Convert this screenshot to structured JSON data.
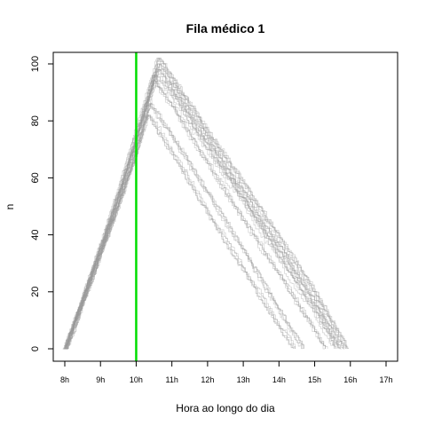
{
  "chart_data": {
    "type": "line",
    "title": "Fila médico 1",
    "xlabel": "Hora ao longo do dia",
    "ylabel": "n",
    "xlim": [
      8,
      17
    ],
    "ylim": [
      0,
      100
    ],
    "x_ticks": [
      8,
      9,
      10,
      11,
      12,
      13,
      14,
      15,
      16,
      17
    ],
    "x_tick_labels": [
      "8h",
      "9h",
      "10h",
      "11h",
      "12h",
      "13h",
      "14h",
      "15h",
      "16h",
      "17h"
    ],
    "y_ticks": [
      0,
      20,
      40,
      60,
      80,
      100
    ],
    "y_tick_labels": [
      "0",
      "20",
      "40",
      "60",
      "80",
      "100"
    ],
    "vertical_line": {
      "x": 10,
      "color": "#00dd00"
    },
    "series_color": "#999999",
    "n_series_approx": 30,
    "series_shape": "Each simulated series rises roughly linearly from about 0 at 8h to a peak of about 82–102 near 10.4h–10.7h, then declines roughly linearly to 0 between about 14.4h and 15.9h.",
    "series": [
      {
        "values": [
          [
            8.0,
            0
          ],
          [
            8.5,
            17
          ],
          [
            9.0,
            35
          ],
          [
            9.5,
            52
          ],
          [
            10.0,
            72
          ],
          [
            10.5,
            96
          ],
          [
            11.0,
            89
          ],
          [
            12.0,
            70
          ],
          [
            13.0,
            52
          ],
          [
            14.0,
            32
          ],
          [
            15.0,
            13
          ],
          [
            15.6,
            0
          ]
        ]
      },
      {
        "values": [
          [
            8.0,
            0
          ],
          [
            8.5,
            18
          ],
          [
            9.0,
            36
          ],
          [
            9.5,
            55
          ],
          [
            10.0,
            75
          ],
          [
            10.6,
            100
          ],
          [
            11.0,
            93
          ],
          [
            12.0,
            74
          ],
          [
            13.0,
            55
          ],
          [
            14.0,
            36
          ],
          [
            15.0,
            17
          ],
          [
            15.8,
            0
          ]
        ]
      },
      {
        "values": [
          [
            8.0,
            0
          ],
          [
            8.5,
            16
          ],
          [
            9.0,
            33
          ],
          [
            9.5,
            50
          ],
          [
            10.0,
            68
          ],
          [
            10.4,
            86
          ],
          [
            11.0,
            75
          ],
          [
            12.0,
            55
          ],
          [
            13.0,
            35
          ],
          [
            14.0,
            14
          ],
          [
            14.7,
            0
          ]
        ]
      },
      {
        "values": [
          [
            8.0,
            0
          ],
          [
            8.5,
            17
          ],
          [
            9.0,
            34
          ],
          [
            9.5,
            51
          ],
          [
            10.0,
            70
          ],
          [
            10.3,
            82
          ],
          [
            11.0,
            68
          ],
          [
            12.0,
            47
          ],
          [
            13.0,
            27
          ],
          [
            14.0,
            7
          ],
          [
            14.4,
            0
          ]
        ]
      },
      {
        "values": [
          [
            8.0,
            0
          ],
          [
            8.5,
            18
          ],
          [
            9.0,
            35
          ],
          [
            9.5,
            53
          ],
          [
            10.0,
            73
          ],
          [
            10.5,
            94
          ],
          [
            11.0,
            85
          ],
          [
            12.0,
            65
          ],
          [
            13.0,
            45
          ],
          [
            14.0,
            26
          ],
          [
            15.0,
            6
          ],
          [
            15.3,
            0
          ]
        ]
      },
      {
        "values": [
          [
            8.0,
            0
          ],
          [
            8.5,
            17
          ],
          [
            9.0,
            35
          ],
          [
            9.5,
            54
          ],
          [
            10.0,
            74
          ],
          [
            10.6,
            98
          ],
          [
            11.0,
            91
          ],
          [
            12.0,
            72
          ],
          [
            13.0,
            53
          ],
          [
            14.0,
            34
          ],
          [
            15.0,
            15
          ],
          [
            15.7,
            0
          ]
        ]
      },
      {
        "values": [
          [
            8.0,
            0
          ],
          [
            8.5,
            18
          ],
          [
            9.0,
            37
          ],
          [
            9.5,
            56
          ],
          [
            10.0,
            77
          ],
          [
            10.6,
            102
          ],
          [
            11.0,
            95
          ],
          [
            12.0,
            76
          ],
          [
            13.0,
            58
          ],
          [
            14.0,
            39
          ],
          [
            15.0,
            20
          ],
          [
            15.9,
            0
          ]
        ]
      }
    ]
  }
}
